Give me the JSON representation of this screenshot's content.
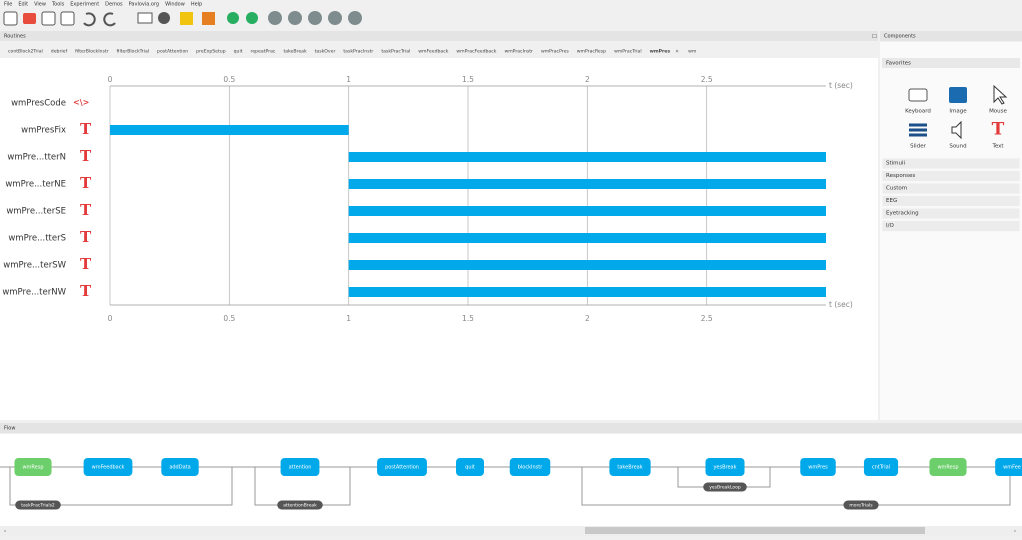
{
  "menu": [
    "File",
    "Edit",
    "View",
    "Tools",
    "Experiment",
    "Demos",
    "Pavlovia.org",
    "Window",
    "Help"
  ],
  "routines_panel": {
    "title": "Routines",
    "tabs": [
      "contBlock2Trial",
      "debrief",
      "filterBlockInstr",
      "filterBlockTrial",
      "postAttention",
      "preExpSetup",
      "quit",
      "repeatPrac",
      "takeBreak",
      "taskOver",
      "taskPracInstr",
      "taskPracTrial",
      "wmFeedback",
      "wmPracFeedback",
      "wmPracInstr",
      "wmPracPres",
      "wmPracResp",
      "wmPracTrial",
      "wmPres",
      "wm"
    ],
    "active_tab": "wmPres",
    "close_glyph": "×"
  },
  "timeline": {
    "axis_label": "t (sec)",
    "xlim": [
      0,
      3
    ],
    "xticks": [
      0,
      0.5,
      1,
      1.5,
      2,
      2.5
    ],
    "bar_color": "#02a9ea",
    "components": [
      {
        "name": "wmPresCode",
        "icon": "<\\>",
        "start": null,
        "stop": null
      },
      {
        "name": "wmPresFix",
        "icon": "T",
        "start": 0,
        "stop": 1
      },
      {
        "name": "wmPre...tterN",
        "icon": "T",
        "start": 1,
        "stop": 3
      },
      {
        "name": "wmPre...terNE",
        "icon": "T",
        "start": 1,
        "stop": 3
      },
      {
        "name": "wmPre...terSE",
        "icon": "T",
        "start": 1,
        "stop": 3
      },
      {
        "name": "wmPre...tterS",
        "icon": "T",
        "start": 1,
        "stop": 3
      },
      {
        "name": "wmPre...terSW",
        "icon": "T",
        "start": 1,
        "stop": 3
      },
      {
        "name": "wmPre...terNW",
        "icon": "T",
        "start": 1,
        "stop": 3
      }
    ]
  },
  "components_panel": {
    "title": "Components",
    "favorites_title": "Favorites",
    "favorites": [
      "Keyboard",
      "Image",
      "Mouse",
      "Slider",
      "Sound",
      "Text"
    ],
    "categories": [
      "Stimuli",
      "Responses",
      "Custom",
      "EEG",
      "Eyetracking",
      "I/O"
    ]
  },
  "flow_panel": {
    "title": "Flow",
    "routines": [
      {
        "name": "wmResp",
        "color": "#6ccf6c"
      },
      {
        "name": "wmFeedback",
        "color": "#02a9ea"
      },
      {
        "name": "addData",
        "color": "#02a9ea"
      },
      {
        "name": "attention",
        "color": "#02a9ea"
      },
      {
        "name": "postAttention",
        "color": "#02a9ea"
      },
      {
        "name": "quit",
        "color": "#02a9ea"
      },
      {
        "name": "blockInstr",
        "color": "#02a9ea"
      },
      {
        "name": "takeBreak",
        "color": "#02a9ea"
      },
      {
        "name": "yesBreak",
        "color": "#02a9ea"
      },
      {
        "name": "wmPres",
        "color": "#02a9ea"
      },
      {
        "name": "cntTrial",
        "color": "#02a9ea"
      },
      {
        "name": "wmResp",
        "color": "#6ccf6c"
      },
      {
        "name": "wmFee",
        "color": "#02a9ea"
      }
    ],
    "loops": [
      "taskPracTrials2",
      "attentionBreak",
      "yesBreakLoop",
      "moreTrials"
    ]
  }
}
